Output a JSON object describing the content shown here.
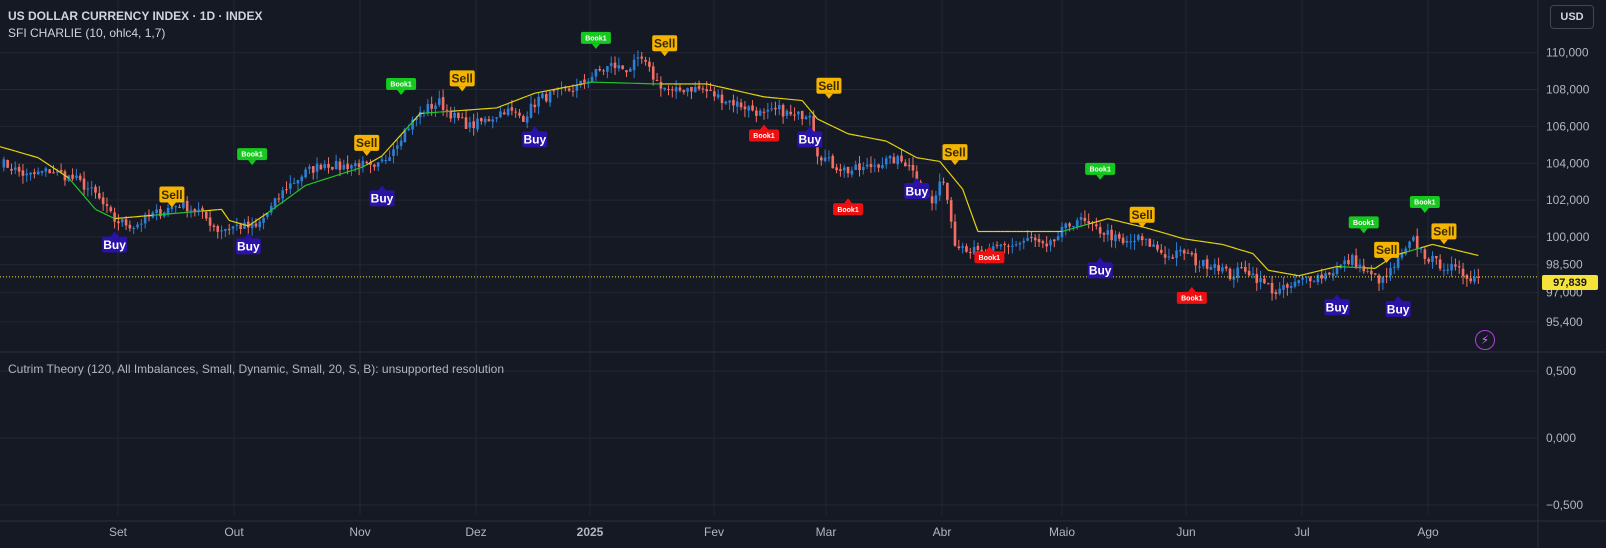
{
  "header": {
    "title": "US DOLLAR CURRENCY INDEX · 1D · INDEX",
    "indicator1": "SFI CHARLIE (10, ohlc4, 1,7)",
    "indicator2": "Cutrim Theory (120, All Imbalances, Small, Dynamic, Small, 20, S, B): unsupported resolution"
  },
  "currency_button": "USD",
  "colors": {
    "background": "#151924",
    "up": "#2d7fd6",
    "down": "#f46f63",
    "buy_line": "#22c52c",
    "sell_line": "#e6d40c",
    "buy_label": "#2a12a6",
    "sell_label": "#f5b400",
    "book_green": "#16c91e",
    "book_red": "#ee1010",
    "last_price": "#f5e33a"
  },
  "chart_data": {
    "type": "candlestick",
    "x_labels": [
      "Set",
      "Out",
      "Nov",
      "Dez",
      "2025",
      "Fev",
      "Mar",
      "Abr",
      "Maio",
      "Jun",
      "Jul",
      "Ago"
    ],
    "y_ticks": [
      "110,000",
      "108,000",
      "106,000",
      "104,000",
      "102,000",
      "100,000",
      "98,500",
      "97,000",
      "95,400"
    ],
    "last_price": "97,839",
    "last_price_value": 97.839,
    "ylim": [
      94.2,
      110.9
    ],
    "close_path": [
      [
        0,
        104.1
      ],
      [
        7,
        103.3
      ],
      [
        13,
        103.6
      ],
      [
        20,
        103.1
      ],
      [
        25,
        102.3
      ],
      [
        30,
        100.9
      ],
      [
        35,
        100.6
      ],
      [
        40,
        101.2
      ],
      [
        47,
        101.8
      ],
      [
        52,
        101.4
      ],
      [
        57,
        100.4
      ],
      [
        62,
        100.6
      ],
      [
        67,
        100.5
      ],
      [
        70,
        101.3
      ],
      [
        75,
        102.7
      ],
      [
        80,
        103.5
      ],
      [
        85,
        104.0
      ],
      [
        89,
        103.8
      ],
      [
        94,
        104.0
      ],
      [
        98,
        103.6
      ],
      [
        101,
        104.3
      ],
      [
        106,
        105.8
      ],
      [
        111,
        106.9
      ],
      [
        115,
        107.3
      ],
      [
        119,
        106.5
      ],
      [
        123,
        106.0
      ],
      [
        128,
        106.4
      ],
      [
        132,
        106.9
      ],
      [
        137,
        106.5
      ],
      [
        141,
        107.5
      ],
      [
        146,
        107.8
      ],
      [
        151,
        108.1
      ],
      [
        156,
        108.9
      ],
      [
        160,
        109.3
      ],
      [
        164,
        109.1
      ],
      [
        168,
        109.6
      ],
      [
        172,
        108.4
      ],
      [
        176,
        107.8
      ],
      [
        180,
        108.1
      ],
      [
        184,
        108.0
      ],
      [
        188,
        107.6
      ],
      [
        192,
        107.3
      ],
      [
        196,
        107.0
      ],
      [
        200,
        106.6
      ],
      [
        204,
        106.9
      ],
      [
        208,
        106.5
      ],
      [
        212,
        106.8
      ],
      [
        214,
        104.6
      ],
      [
        218,
        103.9
      ],
      [
        222,
        103.6
      ],
      [
        226,
        103.7
      ],
      [
        230,
        104.0
      ],
      [
        234,
        104.2
      ],
      [
        238,
        104.0
      ],
      [
        240,
        103.1
      ],
      [
        244,
        101.8
      ],
      [
        247,
        103.2
      ],
      [
        250,
        99.8
      ],
      [
        254,
        99.3
      ],
      [
        258,
        99.0
      ],
      [
        262,
        99.5
      ],
      [
        266,
        99.6
      ],
      [
        270,
        99.9
      ],
      [
        274,
        99.3
      ],
      [
        278,
        100.3
      ],
      [
        282,
        101.0
      ],
      [
        286,
        100.5
      ],
      [
        290,
        100.2
      ],
      [
        294,
        99.6
      ],
      [
        298,
        99.9
      ],
      [
        302,
        99.5
      ],
      [
        306,
        98.9
      ],
      [
        310,
        99.2
      ],
      [
        314,
        98.5
      ],
      [
        318,
        98.6
      ],
      [
        322,
        97.9
      ],
      [
        326,
        98.3
      ],
      [
        330,
        97.6
      ],
      [
        334,
        97.0
      ],
      [
        338,
        97.3
      ],
      [
        342,
        97.8
      ],
      [
        346,
        97.9
      ],
      [
        350,
        98.3
      ],
      [
        354,
        98.8
      ],
      [
        358,
        98.0
      ],
      [
        362,
        97.6
      ],
      [
        366,
        98.7
      ],
      [
        370,
        99.8
      ],
      [
        373,
        99.0
      ],
      [
        376,
        98.6
      ],
      [
        380,
        98.3
      ],
      [
        384,
        97.9
      ],
      [
        387,
        97.8
      ]
    ],
    "trail_line": [
      [
        0,
        104.9
      ],
      [
        10,
        104.3
      ],
      [
        18,
        103.2
      ],
      [
        25,
        101.5
      ],
      [
        30,
        101.0
      ],
      [
        58,
        101.5
      ],
      [
        60,
        100.9
      ],
      [
        65,
        100.6
      ],
      [
        70,
        101.3
      ],
      [
        80,
        102.8
      ],
      [
        95,
        103.8
      ],
      [
        100,
        104.4
      ],
      [
        110,
        106.7
      ],
      [
        130,
        107.0
      ],
      [
        140,
        107.8
      ],
      [
        155,
        108.4
      ],
      [
        172,
        108.3
      ],
      [
        185,
        108.3
      ],
      [
        200,
        107.6
      ],
      [
        210,
        107.4
      ],
      [
        214,
        106.4
      ],
      [
        222,
        105.6
      ],
      [
        232,
        105.2
      ],
      [
        240,
        104.3
      ],
      [
        246,
        104.1
      ],
      [
        252,
        102.6
      ],
      [
        256,
        100.3
      ],
      [
        278,
        100.3
      ],
      [
        290,
        101.0
      ],
      [
        300,
        100.5
      ],
      [
        310,
        99.9
      ],
      [
        320,
        99.6
      ],
      [
        328,
        99.1
      ],
      [
        332,
        98.2
      ],
      [
        340,
        97.9
      ],
      [
        350,
        98.4
      ],
      [
        360,
        98.3
      ],
      [
        365,
        99.0
      ],
      [
        375,
        99.6
      ],
      [
        387,
        99.0
      ]
    ],
    "buy_signals": [
      {
        "i": 30,
        "price": 100.3
      },
      {
        "i": 65,
        "price": 100.2
      },
      {
        "i": 100,
        "price": 102.8
      },
      {
        "i": 140,
        "price": 106.0
      },
      {
        "i": 212,
        "price": 106.0
      },
      {
        "i": 240,
        "price": 103.2
      },
      {
        "i": 288,
        "price": 98.9
      },
      {
        "i": 350,
        "price": 96.9
      },
      {
        "i": 366,
        "price": 96.8
      }
    ],
    "sell_signals": [
      {
        "i": 45,
        "price": 101.6
      },
      {
        "i": 96,
        "price": 104.4
      },
      {
        "i": 121,
        "price": 107.9
      },
      {
        "i": 174,
        "price": 109.8
      },
      {
        "i": 217,
        "price": 107.5
      },
      {
        "i": 250,
        "price": 103.9
      },
      {
        "i": 299,
        "price": 100.5
      },
      {
        "i": 363,
        "price": 98.6
      },
      {
        "i": 378,
        "price": 99.6
      }
    ],
    "book_green": [
      {
        "i": 66,
        "price": 103.9
      },
      {
        "i": 105,
        "price": 107.7
      },
      {
        "i": 156,
        "price": 110.2
      },
      {
        "i": 288,
        "price": 103.1
      },
      {
        "i": 357,
        "price": 100.2
      },
      {
        "i": 373,
        "price": 101.3
      }
    ],
    "book_red": [
      {
        "i": 200,
        "price": 106.1
      },
      {
        "i": 222,
        "price": 102.1
      },
      {
        "i": 259,
        "price": 99.5
      },
      {
        "i": 312,
        "price": 97.3
      }
    ],
    "lower_pane": {
      "y_ticks": [
        "0,500",
        "0,000",
        "−0,500"
      ]
    }
  }
}
